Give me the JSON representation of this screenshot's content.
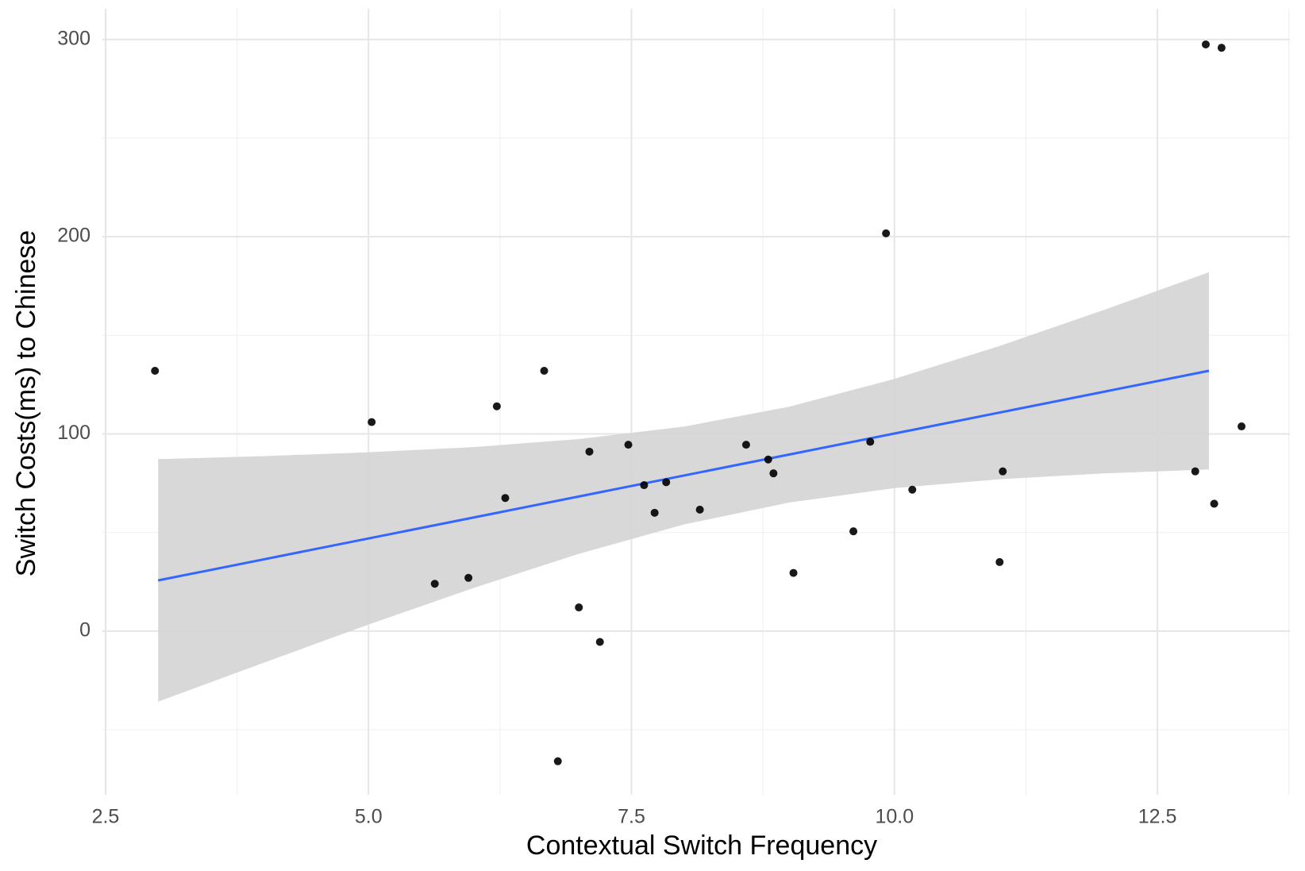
{
  "chart_data": {
    "type": "scatter",
    "x_label": "Contextual Switch Frequency",
    "y_label": "Switch Costs(ms) to Chinese",
    "x": [
      2.97,
      5.03,
      6.22,
      6.67,
      5.63,
      5.95,
      6.3,
      6.8,
      7.0,
      7.1,
      7.2,
      7.47,
      7.62,
      7.72,
      7.83,
      8.15,
      8.59,
      8.8,
      8.85,
      9.04,
      9.61,
      9.77,
      9.92,
      10.17,
      11.0,
      11.03,
      12.86,
      12.96,
      13.04,
      13.11,
      13.3
    ],
    "y": [
      132,
      106,
      114,
      132,
      24,
      27,
      67.5,
      -66,
      12,
      91,
      -5.5,
      94.5,
      74,
      60,
      75.5,
      61.6,
      94.5,
      87,
      80,
      29.5,
      50.6,
      96,
      201.7,
      71.7,
      35,
      81,
      81,
      297.5,
      64.6,
      295.8,
      103.8
    ],
    "color": "#000000",
    "fit_line": {
      "x": [
        3.0,
        12.99
      ],
      "y": [
        25.7,
        132.0
      ],
      "color": "#3366ff"
    },
    "confidence_band": {
      "x": [
        3,
        4,
        5,
        6,
        7,
        8,
        9,
        10,
        11,
        12,
        12.99
      ],
      "lower": [
        -35.8,
        -16.1,
        3.3,
        21.9,
        39.2,
        54.1,
        65.2,
        72.5,
        77.0,
        80.0,
        82.0
      ],
      "upper": [
        87.2,
        88.7,
        90.7,
        93.3,
        97.4,
        103.7,
        113.8,
        127.9,
        144.6,
        163.0,
        182.0
      ],
      "color": "#d4d4d4"
    },
    "xlim": [
      2.47,
      13.76
    ],
    "ylim": [
      -83,
      315.6
    ],
    "xticks": [
      2.5,
      {
        "value": 5,
        "label": "5.0"
      },
      7.5,
      {
        "value": 10,
        "label": "10.0"
      },
      12.5
    ],
    "yticks": [
      0,
      100,
      200,
      300
    ],
    "x_minor_grid": [
      3.75,
      6.25,
      8.75,
      11.25,
      13.75
    ],
    "y_minor_grid": [
      -50,
      50,
      150,
      250
    ],
    "grid": true
  }
}
